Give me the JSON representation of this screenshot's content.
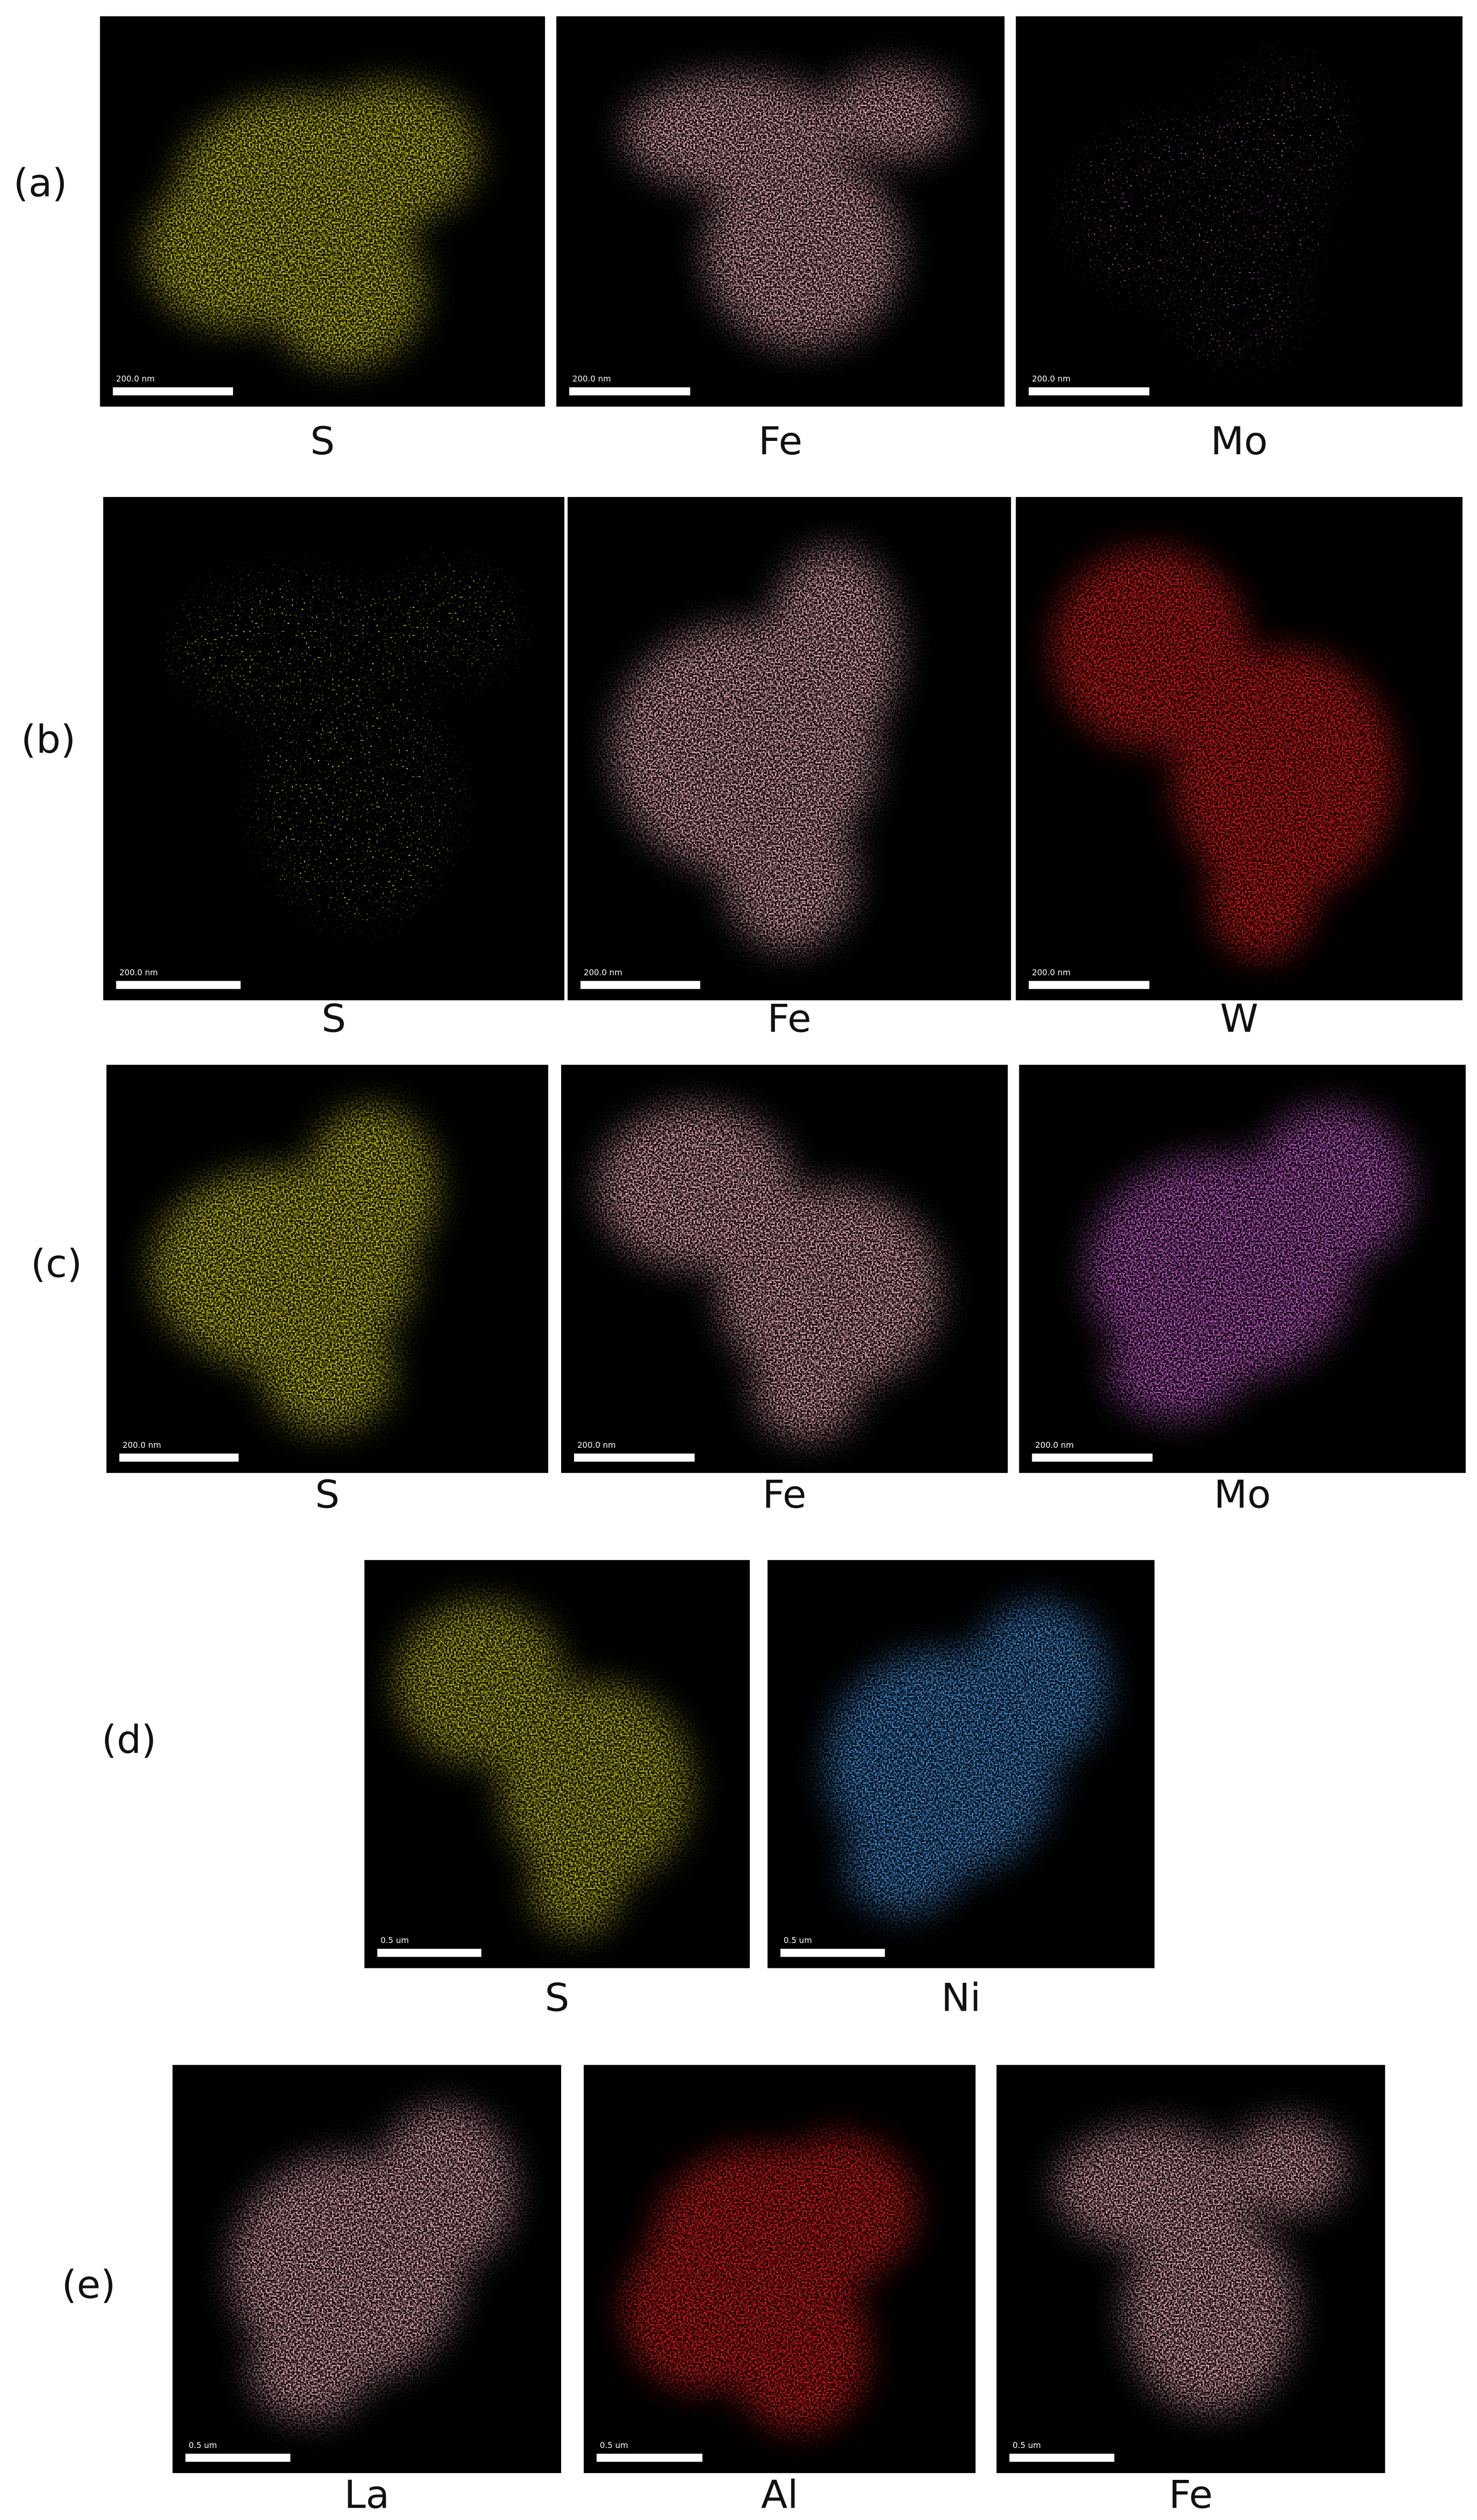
{
  "panels": [
    {
      "label": "(a)",
      "maps": [
        {
          "element": "S",
          "scale_bar": "200.0 nm"
        },
        {
          "element": "Fe",
          "scale_bar": "200.0 nm"
        },
        {
          "element": "Mo",
          "scale_bar": "200.0 nm"
        }
      ]
    },
    {
      "label": "(b)",
      "maps": [
        {
          "element": "S",
          "scale_bar": "200.0 nm"
        },
        {
          "element": "Fe",
          "scale_bar": "200.0 nm"
        },
        {
          "element": "W",
          "scale_bar": "200.0 nm"
        }
      ]
    },
    {
      "label": "(c)",
      "maps": [
        {
          "element": "S",
          "scale_bar": "200.0 nm"
        },
        {
          "element": "Fe",
          "scale_bar": "200.0 nm"
        },
        {
          "element": "Mo",
          "scale_bar": "200.0 nm"
        }
      ]
    },
    {
      "label": "(d)",
      "maps": [
        {
          "element": "S",
          "scale_bar": "0.5 um"
        },
        {
          "element": "Ni",
          "scale_bar": "0.5 um"
        }
      ]
    },
    {
      "label": "(e)",
      "maps": [
        {
          "element": "La",
          "scale_bar": "0.5 um"
        },
        {
          "element": "Al",
          "scale_bar": "0.5 um"
        },
        {
          "element": "Fe",
          "scale_bar": "0.5 um"
        }
      ]
    }
  ]
}
